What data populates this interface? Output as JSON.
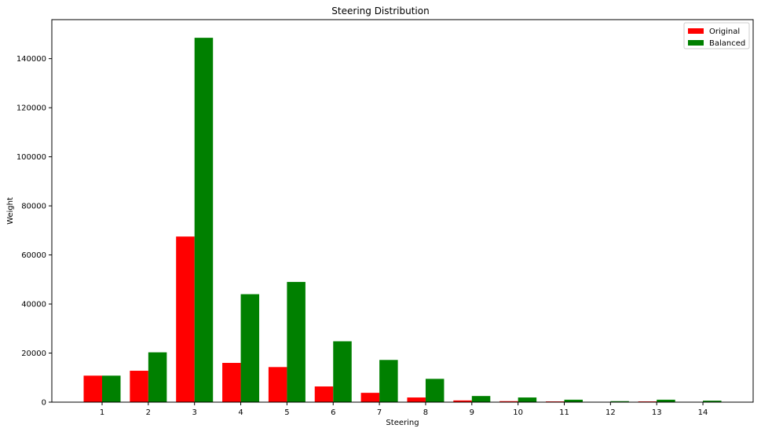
{
  "chart_data": {
    "type": "bar",
    "title": "Steering Distribution",
    "xlabel": "Steering",
    "ylabel": "Weight",
    "categories": [
      "1",
      "2",
      "3",
      "4",
      "5",
      "6",
      "7",
      "8",
      "9",
      "10",
      "11",
      "12",
      "13",
      "14"
    ],
    "series": [
      {
        "name": "Original",
        "color": "#ff0000",
        "values": [
          10800,
          12800,
          67500,
          16000,
          14300,
          6400,
          3800,
          1900,
          700,
          400,
          300,
          150,
          300,
          100
        ]
      },
      {
        "name": "Balanced",
        "color": "#008000",
        "values": [
          10800,
          20300,
          148500,
          44000,
          49000,
          24800,
          17200,
          9500,
          2500,
          1900,
          1000,
          400,
          1000,
          600
        ]
      }
    ],
    "ylim": [
      0,
      155900
    ],
    "yticks": [
      "0",
      "20000",
      "40000",
      "60000",
      "80000",
      "100000",
      "120000",
      "140000"
    ],
    "legend_position": "top-right",
    "grid": false
  }
}
